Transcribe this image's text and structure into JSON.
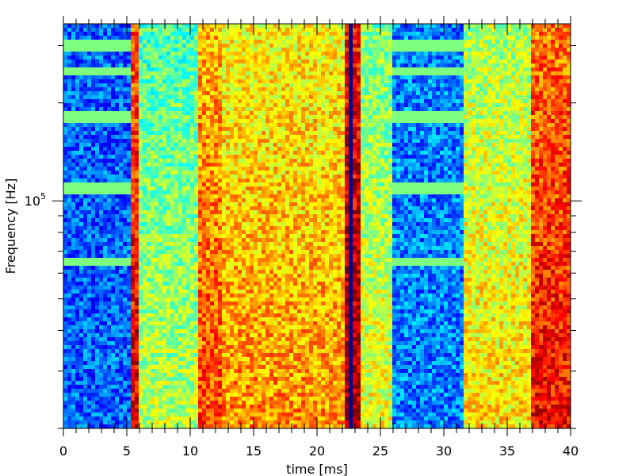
{
  "chart_data": {
    "type": "heatmap",
    "title": "",
    "xlabel": "time [ms]",
    "ylabel": "Frequency [Hz]",
    "x_scale": "linear",
    "y_scale": "log",
    "xlim": [
      0,
      40
    ],
    "ylim": [
      20000,
      350000
    ],
    "x_ticks": [
      {
        "value": 0,
        "label": "0"
      },
      {
        "value": 5,
        "label": "5"
      },
      {
        "value": 10,
        "label": "10"
      },
      {
        "value": 15,
        "label": "15"
      },
      {
        "value": 20,
        "label": "20"
      },
      {
        "value": 25,
        "label": "25"
      },
      {
        "value": 30,
        "label": "30"
      },
      {
        "value": 35,
        "label": "35"
      },
      {
        "value": 40,
        "label": "40"
      }
    ],
    "y_ticks": [
      {
        "value": 100000,
        "label_base": "10",
        "label_exp": "5"
      }
    ],
    "colormap": "jet",
    "colormap_stops": [
      "#00007f",
      "#0000ff",
      "#007fff",
      "#00ffff",
      "#7fff7f",
      "#ffff00",
      "#ff7f00",
      "#ff0000",
      "#7f0000"
    ],
    "background_level": 0.55,
    "regions": [
      {
        "t_start": 0.0,
        "t_end": 5.3,
        "level": 0.22,
        "note": "quiet region"
      },
      {
        "t_start": 5.3,
        "t_end": 6.0,
        "level": 0.85
      },
      {
        "t_start": 6.0,
        "t_end": 10.5,
        "level": 0.5
      },
      {
        "t_start": 10.5,
        "t_end": 12.5,
        "level": 0.75
      },
      {
        "t_start": 12.5,
        "t_end": 22.3,
        "level": 0.68
      },
      {
        "t_start": 22.3,
        "t_end": 23.3,
        "level": 0.92
      },
      {
        "t_start": 23.3,
        "t_end": 26.0,
        "level": 0.55
      },
      {
        "t_start": 26.0,
        "t_end": 31.5,
        "level": 0.25,
        "note": "quiet region"
      },
      {
        "t_start": 31.5,
        "t_end": 37.0,
        "level": 0.6
      },
      {
        "t_start": 37.0,
        "t_end": 40.0,
        "level": 0.82
      }
    ],
    "dark_line_time": 22.7,
    "harmonic_bands_hz": [
      65000,
      110000,
      180000,
      250000,
      300000
    ]
  }
}
